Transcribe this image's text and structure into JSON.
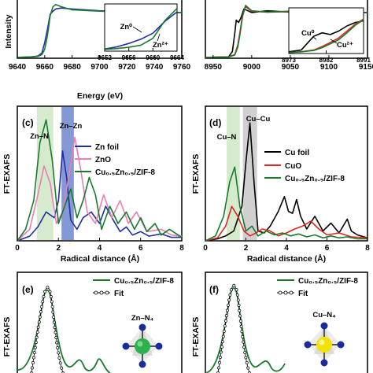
{
  "chart_data": [
    {
      "panel": "",
      "type": "line",
      "xlabel": "Energy (eV)",
      "ylabel": "Intensity",
      "xlim": [
        9640,
        9760
      ],
      "xticks": [
        9640,
        9660,
        9680,
        9700,
        9720,
        9740,
        9760
      ],
      "series": [
        {
          "color": "#1f2fa0",
          "x": [
            9640,
            9650,
            9655,
            9658,
            9660,
            9662,
            9664,
            9666,
            9668,
            9672,
            9680,
            9700,
            9720,
            9740,
            9760
          ],
          "y": [
            0.02,
            0.03,
            0.05,
            0.12,
            0.35,
            0.65,
            0.98,
            1.05,
            1.1,
            1.12,
            1.1,
            1.06,
            1.04,
            1.03,
            1.02
          ]
        },
        {
          "color": "#1a7a2c",
          "x": [
            9640,
            9650,
            9655,
            9658,
            9660,
            9662,
            9664,
            9666,
            9668,
            9672,
            9680,
            9700,
            9720,
            9740,
            9760
          ],
          "y": [
            0.02,
            0.03,
            0.04,
            0.08,
            0.2,
            0.5,
            0.95,
            1.15,
            1.2,
            1.15,
            1.08,
            1.05,
            1.03,
            1.02,
            1.02
          ]
        }
      ],
      "inset": {
        "xticks": [
          9652,
          9656,
          9660,
          9664
        ],
        "xlim": [
          9652,
          9664
        ],
        "labels": [
          "Zn⁰",
          "Zn²⁺"
        ],
        "series": [
          {
            "color": "#1f2fa0",
            "x": [
              9652,
              9654,
              9656,
              9658,
              9660,
              9662,
              9664
            ],
            "y": [
              0.05,
              0.1,
              0.18,
              0.28,
              0.42,
              0.7,
              0.92
            ]
          },
          {
            "color": "#1a7a2c",
            "x": [
              9652,
              9654,
              9656,
              9658,
              9660,
              9662,
              9664
            ],
            "y": [
              0.04,
              0.06,
              0.09,
              0.14,
              0.3,
              0.72,
              1.0
            ]
          }
        ]
      }
    },
    {
      "panel": "",
      "type": "line",
      "xlabel": "",
      "ylabel": "",
      "xlim": [
        8940,
        9150
      ],
      "xticks": [
        8950,
        9000,
        9050,
        9100,
        9150
      ],
      "series": [
        {
          "color": "#000000",
          "x": [
            8940,
            8970,
            8975,
            8978,
            8980,
            8983,
            8986,
            8990,
            9000,
            9020,
            9050,
            9100,
            9150
          ],
          "y": [
            0.02,
            0.03,
            0.15,
            0.55,
            0.85,
            0.8,
            0.9,
            1.1,
            1.02,
            1.06,
            1.03,
            1.02,
            1.02
          ]
        },
        {
          "color": "#e0251b",
          "x": [
            8940,
            8970,
            8978,
            8982,
            8985,
            8988,
            8992,
            9000,
            9020,
            9050,
            9100,
            9150
          ],
          "y": [
            0.02,
            0.03,
            0.08,
            0.3,
            0.6,
            0.95,
            1.15,
            1.05,
            1.03,
            1.04,
            1.02,
            1.02
          ]
        },
        {
          "color": "#1a7a2c",
          "x": [
            8940,
            8970,
            8978,
            8982,
            8985,
            8988,
            8992,
            9000,
            9020,
            9050,
            9100,
            9150
          ],
          "y": [
            0.02,
            0.03,
            0.07,
            0.25,
            0.55,
            0.92,
            1.18,
            1.06,
            1.03,
            1.05,
            1.02,
            1.02
          ]
        }
      ],
      "inset": {
        "xticks": [
          8973,
          8982,
          8991
        ],
        "xlim": [
          8973,
          8991
        ],
        "labels": [
          "Cu⁰",
          "Cu²⁺"
        ],
        "series": [
          {
            "color": "#000000",
            "x": [
              8973,
              8976,
              8979,
              8981,
              8983,
              8985,
              8987,
              8989,
              8991
            ],
            "y": [
              0.05,
              0.1,
              0.5,
              0.6,
              0.55,
              0.65,
              0.8,
              0.9,
              0.95
            ]
          },
          {
            "color": "#e0251b",
            "x": [
              8973,
              8976,
              8979,
              8981,
              8983,
              8985,
              8987,
              8989,
              8991
            ],
            "y": [
              0.03,
              0.05,
              0.1,
              0.2,
              0.32,
              0.45,
              0.65,
              0.85,
              1.0
            ]
          },
          {
            "color": "#1a7a2c",
            "x": [
              8973,
              8976,
              8979,
              8981,
              8983,
              8985,
              8987,
              8989,
              8991
            ],
            "y": [
              0.03,
              0.05,
              0.09,
              0.17,
              0.28,
              0.4,
              0.6,
              0.82,
              0.98
            ]
          }
        ]
      }
    },
    {
      "panel": "(c)",
      "type": "line",
      "xlabel": "Radical distance (Å)",
      "ylabel": "FT-EXAFS",
      "xlim": [
        0,
        8
      ],
      "xticks": [
        0,
        2,
        4,
        6,
        8
      ],
      "bands": [
        {
          "label": "Zn–N",
          "from": 0.95,
          "to": 1.75,
          "color": "#cfe8c4"
        },
        {
          "label": "Zn–Zn",
          "from": 2.15,
          "to": 2.75,
          "color": "#6f86cf"
        }
      ],
      "series": [
        {
          "name": "Zn foil",
          "color": "#1f2fa0",
          "x": [
            0,
            0.6,
            1.0,
            1.4,
            1.8,
            2.0,
            2.2,
            2.4,
            2.6,
            2.9,
            3.2,
            3.6,
            4.0,
            4.3,
            4.6,
            5.0,
            5.3,
            5.6,
            6.0,
            6.4,
            7.0,
            7.5,
            8.0
          ],
          "y": [
            0.0,
            0.04,
            0.12,
            0.25,
            0.2,
            0.35,
            0.78,
            0.55,
            0.18,
            0.1,
            0.2,
            0.25,
            0.15,
            0.3,
            0.2,
            0.08,
            0.12,
            0.05,
            0.08,
            0.04,
            0.06,
            0.03,
            0.03
          ]
        },
        {
          "name": "ZnO",
          "color": "#e87fb5",
          "x": [
            0,
            0.6,
            1.0,
            1.3,
            1.6,
            1.9,
            2.2,
            2.5,
            2.8,
            3.1,
            3.4,
            3.8,
            4.2,
            4.6,
            5.0,
            5.4,
            5.8,
            6.3,
            7.0,
            7.5,
            8.0
          ],
          "y": [
            0.0,
            0.1,
            0.4,
            0.65,
            0.5,
            0.15,
            0.25,
            0.55,
            0.9,
            0.6,
            0.25,
            0.15,
            0.4,
            0.2,
            0.35,
            0.15,
            0.25,
            0.08,
            0.1,
            0.05,
            0.04
          ]
        },
        {
          "name": "Cu₀.₅Zn₀.₅/ZIF-8",
          "color": "#1a7a2c",
          "x": [
            0,
            0.4,
            0.8,
            1.1,
            1.4,
            1.7,
            2.0,
            2.3,
            2.6,
            2.9,
            3.2,
            3.5,
            3.8,
            4.1,
            4.5,
            4.9,
            5.3,
            5.7,
            6.0,
            6.3,
            6.7,
            7.0,
            7.4,
            8.0
          ],
          "y": [
            0.0,
            0.1,
            0.35,
            0.85,
            1.05,
            0.7,
            0.15,
            0.3,
            0.45,
            0.2,
            0.35,
            0.55,
            0.4,
            0.1,
            0.3,
            0.15,
            0.25,
            0.1,
            0.2,
            0.08,
            0.15,
            0.05,
            0.1,
            0.03
          ]
        }
      ]
    },
    {
      "panel": "(d)",
      "type": "line",
      "xlabel": "Radical distance (Å)",
      "ylabel": "FT-EXAFS",
      "xlim": [
        0,
        8
      ],
      "xticks": [
        0,
        2,
        4,
        6,
        8
      ],
      "bands": [
        {
          "label": "Cu–N",
          "from": 1.05,
          "to": 1.7,
          "color": "#cfe8c4"
        },
        {
          "label": "Cu–Cu",
          "from": 1.85,
          "to": 2.55,
          "color": "#c8c8c8"
        }
      ],
      "series": [
        {
          "name": "Cu foil",
          "color": "#000000",
          "x": [
            0,
            0.6,
            1.0,
            1.4,
            1.8,
            2.0,
            2.2,
            2.4,
            2.6,
            2.9,
            3.2,
            3.6,
            3.9,
            4.1,
            4.3,
            4.5,
            4.7,
            5.0,
            5.4,
            5.8,
            6.2,
            6.6,
            7.0,
            7.2,
            7.5,
            8.0
          ],
          "y": [
            0.0,
            0.02,
            0.05,
            0.1,
            0.35,
            0.8,
            1.2,
            0.6,
            0.1,
            0.08,
            0.15,
            0.3,
            0.45,
            0.3,
            0.28,
            0.42,
            0.25,
            0.12,
            0.25,
            0.1,
            0.18,
            0.08,
            0.22,
            0.1,
            0.06,
            0.03
          ]
        },
        {
          "name": "CuO",
          "color": "#e0251b",
          "x": [
            0,
            0.6,
            1.0,
            1.3,
            1.6,
            1.9,
            2.2,
            2.5,
            2.8,
            3.2,
            3.6,
            4.0,
            4.4,
            4.8,
            5.2,
            5.6,
            6.0,
            6.6,
            7.2,
            8.0
          ],
          "y": [
            0.0,
            0.03,
            0.15,
            0.35,
            0.25,
            0.1,
            0.05,
            0.08,
            0.12,
            0.1,
            0.05,
            0.08,
            0.12,
            0.15,
            0.2,
            0.12,
            0.06,
            0.08,
            0.04,
            0.03
          ]
        },
        {
          "name": "Cu₀.₅Zn₀.₅/ZIF-8",
          "color": "#1a7a2c",
          "x": [
            0,
            0.5,
            0.9,
            1.2,
            1.45,
            1.7,
            2.0,
            2.3,
            2.6,
            3.0,
            3.4,
            3.8,
            4.2,
            4.6,
            5.0,
            5.4,
            5.8,
            6.2,
            6.6,
            7.0,
            7.5,
            8.0
          ],
          "y": [
            0.0,
            0.05,
            0.25,
            0.6,
            0.75,
            0.35,
            0.1,
            0.15,
            0.05,
            0.1,
            0.06,
            0.08,
            0.05,
            0.07,
            0.04,
            0.06,
            0.03,
            0.05,
            0.03,
            0.04,
            0.02,
            0.02
          ]
        }
      ]
    },
    {
      "panel": "(e)",
      "type": "line",
      "ylabel": "FT-EXAFS",
      "label": "Zn–N₄",
      "series": [
        {
          "name": "Cu₀.₅Zn₀.₅/ZIF-8",
          "color": "#1a7a2c",
          "style": "line"
        },
        {
          "name": "Fit",
          "color": "#000000",
          "style": "open-circles"
        }
      ]
    },
    {
      "panel": "(f)",
      "type": "line",
      "ylabel": "FT-EXAFS",
      "label": "Cu–N₄",
      "series": [
        {
          "name": "Cu₀.₅Zn₀.₅/ZIF-8",
          "color": "#1a7a2c",
          "style": "line"
        },
        {
          "name": "Fit",
          "color": "#000000",
          "style": "open-circles"
        }
      ]
    }
  ]
}
